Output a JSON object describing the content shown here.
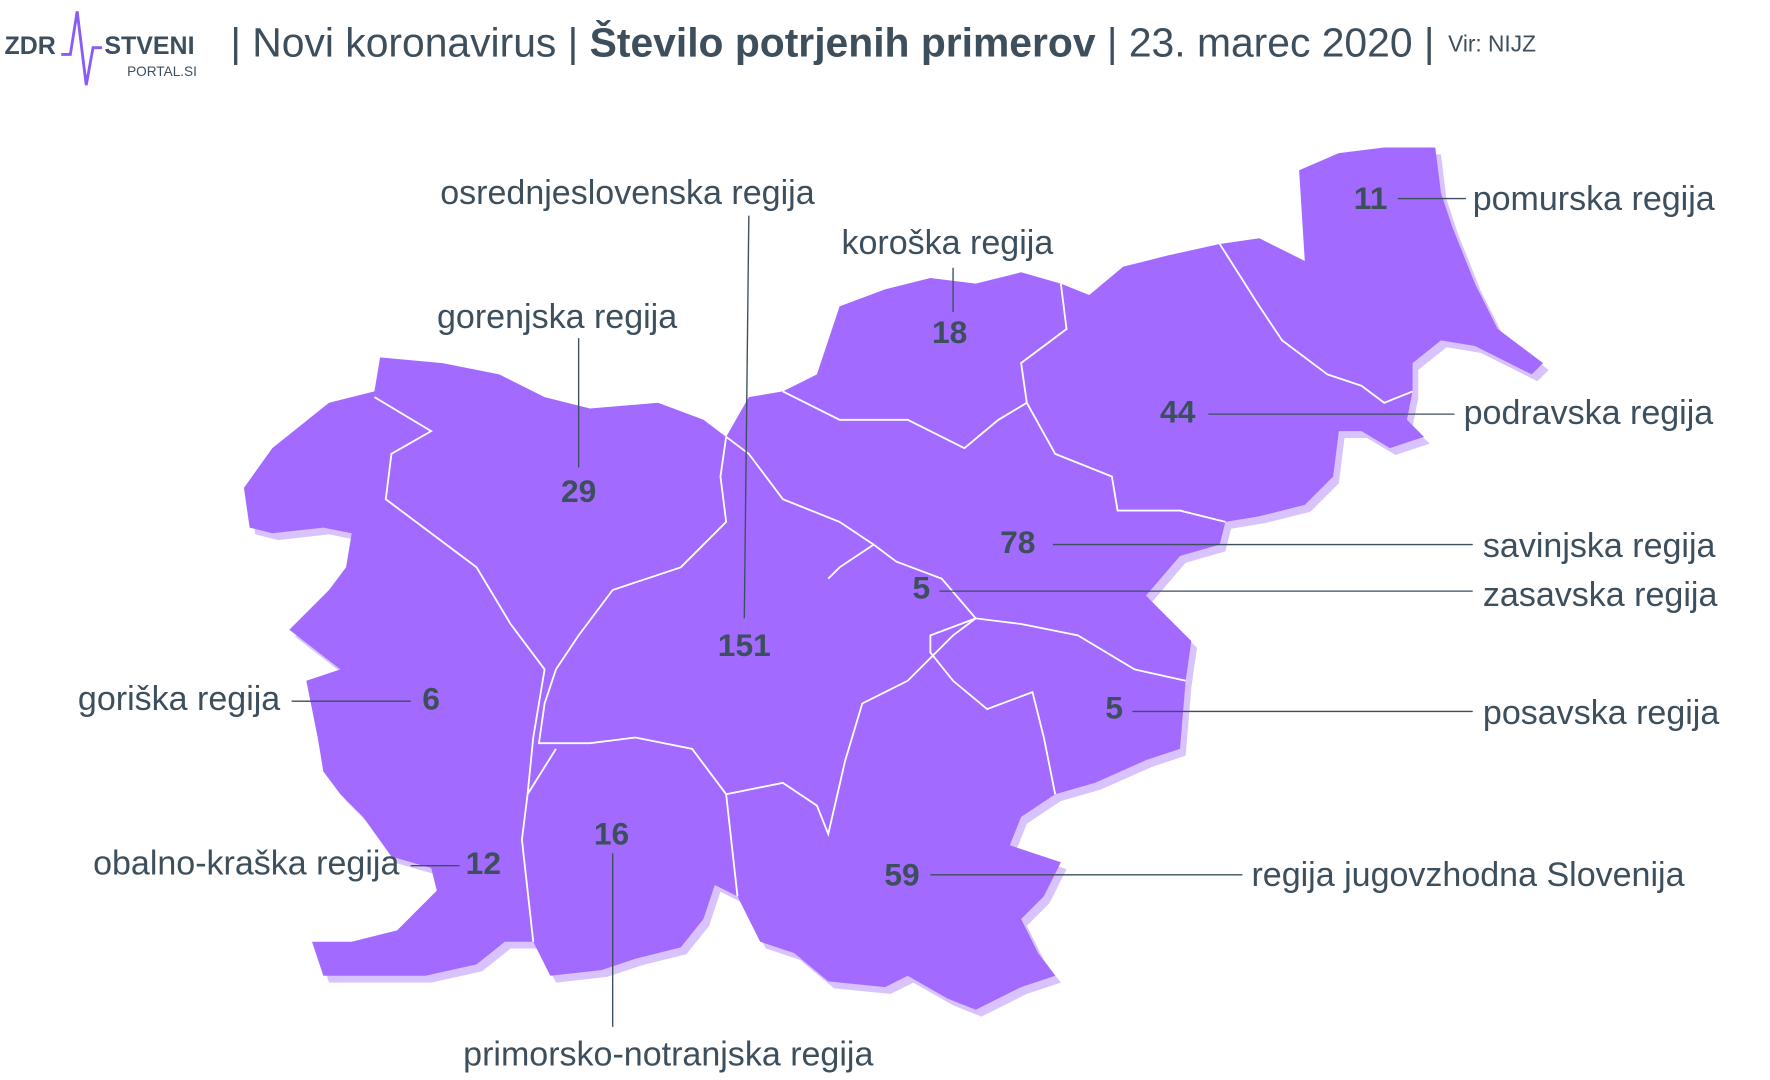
{
  "logo": {
    "left": "ZDR",
    "right": "STVENI",
    "sub": "PORTAL.SI"
  },
  "header": {
    "topic": "| Novi koronavirus |",
    "title": "Število potrjenih primerov",
    "date": "| 23. marec 2020 |",
    "source": "Vir: NIJZ"
  },
  "regions": [
    {
      "name": "osrednjeslovenska regija",
      "value": 151
    },
    {
      "name": "koroška regija",
      "value": 18
    },
    {
      "name": "gorenjska regija",
      "value": 29
    },
    {
      "name": "pomurska regija",
      "value": 11
    },
    {
      "name": "podravska regija",
      "value": 44
    },
    {
      "name": "savinjska regija",
      "value": 78
    },
    {
      "name": "zasavska regija",
      "value": 5
    },
    {
      "name": "goriška regija",
      "value": 6
    },
    {
      "name": "posavska regija",
      "value": 5
    },
    {
      "name": "obalno-kraška regija",
      "value": 12
    },
    {
      "name": "primorsko-notranjska regija",
      "value": 16
    },
    {
      "name": "regija jugovzhodna Slovenija",
      "value": 59
    }
  ]
}
